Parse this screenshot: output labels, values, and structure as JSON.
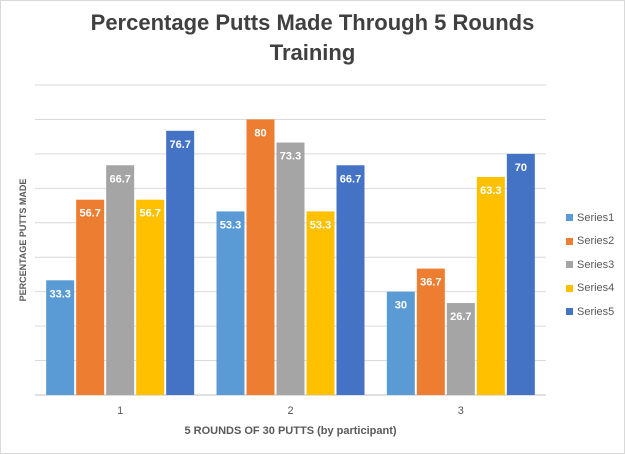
{
  "chart_data": {
    "type": "bar",
    "title_lines": [
      "Percentage Putts Made Through 5 Rounds",
      "Training"
    ],
    "xlabel": "5 ROUNDS OF 30 PUTTS (by participant)",
    "ylabel": "PERCENTAGE PUTTS MADE",
    "categories": [
      "1",
      "2",
      "3"
    ],
    "ylim": [
      0,
      90
    ],
    "grid": true,
    "legend_position": "right",
    "series": [
      {
        "name": "Series1",
        "color": "#5b9bd5",
        "values": [
          33.3,
          53.3,
          30
        ]
      },
      {
        "name": "Series2",
        "color": "#ed7d31",
        "values": [
          56.7,
          80,
          36.7
        ]
      },
      {
        "name": "Series3",
        "color": "#a5a5a5",
        "values": [
          66.7,
          73.3,
          26.7
        ]
      },
      {
        "name": "Series4",
        "color": "#ffc000",
        "values": [
          56.7,
          53.3,
          63.3
        ]
      },
      {
        "name": "Series5",
        "color": "#4472c4",
        "values": [
          76.7,
          66.7,
          70
        ]
      }
    ]
  }
}
